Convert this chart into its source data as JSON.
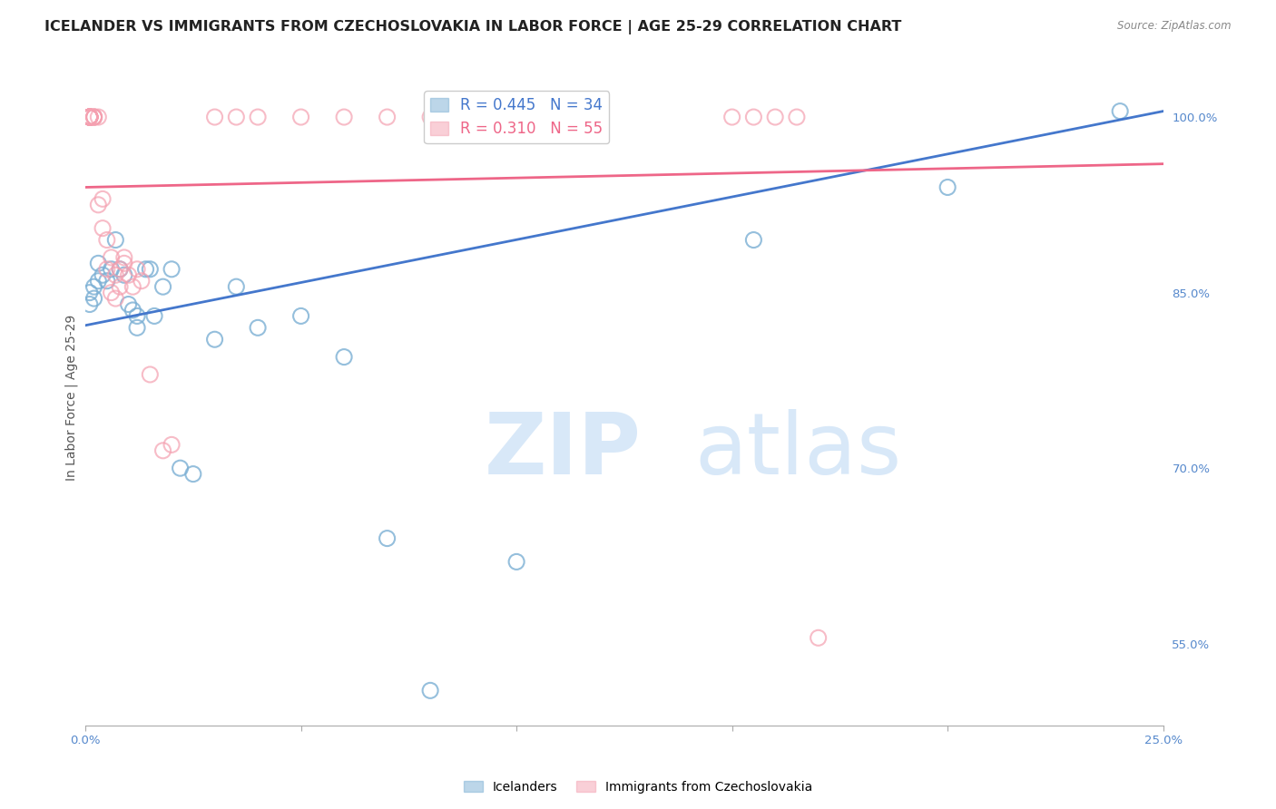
{
  "title": "ICELANDER VS IMMIGRANTS FROM CZECHOSLOVAKIA IN LABOR FORCE | AGE 25-29 CORRELATION CHART",
  "source": "Source: ZipAtlas.com",
  "ylabel": "In Labor Force | Age 25-29",
  "xlim": [
    0.0,
    0.25
  ],
  "ylim": [
    0.48,
    1.04
  ],
  "xticks": [
    0.0,
    0.05,
    0.1,
    0.15,
    0.2,
    0.25
  ],
  "xticklabels": [
    "0.0%",
    "",
    "",
    "",
    "",
    "25.0%"
  ],
  "yticks_right": [
    1.0,
    0.85,
    0.7,
    0.55
  ],
  "ytick_right_labels": [
    "100.0%",
    "85.0%",
    "70.0%",
    "55.0%"
  ],
  "blue_color": "#7BAFD4",
  "pink_color": "#F4A0B0",
  "blue_line_color": "#4477CC",
  "pink_line_color": "#EE6688",
  "watermark_zip": "ZIP",
  "watermark_atlas": "atlas",
  "watermark_color": "#D8E8F8",
  "legend_R_blue": "R = 0.445",
  "legend_N_blue": "N = 34",
  "legend_R_pink": "R = 0.310",
  "legend_N_pink": "N = 55",
  "blue_scatter_x": [
    0.001,
    0.001,
    0.002,
    0.002,
    0.003,
    0.003,
    0.004,
    0.005,
    0.006,
    0.007,
    0.008,
    0.009,
    0.01,
    0.011,
    0.012,
    0.014,
    0.015,
    0.016,
    0.018,
    0.02,
    0.022,
    0.025,
    0.03,
    0.035,
    0.04,
    0.05,
    0.06,
    0.07,
    0.08,
    0.1,
    0.155,
    0.2,
    0.24,
    0.012
  ],
  "blue_scatter_y": [
    0.85,
    0.84,
    0.855,
    0.845,
    0.86,
    0.875,
    0.865,
    0.86,
    0.87,
    0.895,
    0.87,
    0.865,
    0.84,
    0.835,
    0.82,
    0.87,
    0.87,
    0.83,
    0.855,
    0.87,
    0.7,
    0.695,
    0.81,
    0.855,
    0.82,
    0.83,
    0.795,
    0.64,
    0.51,
    0.62,
    0.895,
    0.94,
    1.005,
    0.83
  ],
  "pink_scatter_x": [
    0.001,
    0.001,
    0.001,
    0.001,
    0.001,
    0.001,
    0.001,
    0.001,
    0.001,
    0.001,
    0.001,
    0.001,
    0.001,
    0.001,
    0.001,
    0.002,
    0.002,
    0.002,
    0.002,
    0.003,
    0.003,
    0.004,
    0.004,
    0.005,
    0.005,
    0.006,
    0.006,
    0.007,
    0.007,
    0.008,
    0.008,
    0.009,
    0.009,
    0.01,
    0.011,
    0.012,
    0.013,
    0.015,
    0.018,
    0.02,
    0.03,
    0.035,
    0.04,
    0.05,
    0.06,
    0.07,
    0.08,
    0.09,
    0.1,
    0.11,
    0.15,
    0.155,
    0.16,
    0.165,
    0.17
  ],
  "pink_scatter_y": [
    1.0,
    1.0,
    1.0,
    1.0,
    1.0,
    1.0,
    1.0,
    1.0,
    1.0,
    1.0,
    1.0,
    1.0,
    1.0,
    1.0,
    1.0,
    1.0,
    1.0,
    1.0,
    1.0,
    1.0,
    0.925,
    0.93,
    0.905,
    0.895,
    0.87,
    0.88,
    0.85,
    0.865,
    0.845,
    0.87,
    0.855,
    0.875,
    0.88,
    0.865,
    0.855,
    0.87,
    0.86,
    0.78,
    0.715,
    0.72,
    1.0,
    1.0,
    1.0,
    1.0,
    1.0,
    1.0,
    1.0,
    1.0,
    1.0,
    1.0,
    1.0,
    1.0,
    1.0,
    1.0,
    0.555
  ],
  "blue_trendline": [
    0.822,
    1.005
  ],
  "pink_trendline": [
    0.94,
    0.96
  ],
  "background_color": "#FFFFFF",
  "grid_color": "#CCCCCC",
  "axis_color": "#5588CC",
  "title_color": "#222222",
  "title_fontsize": 11.5,
  "label_fontsize": 10,
  "tick_fontsize": 9.5,
  "legend_fontsize": 12
}
